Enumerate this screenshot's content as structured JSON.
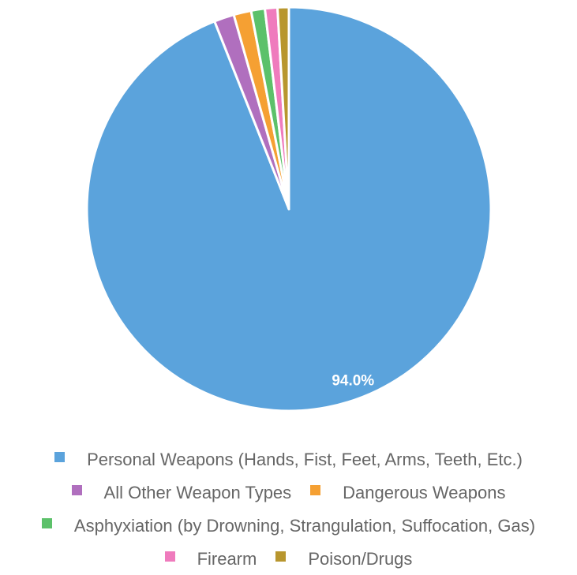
{
  "chart_data": {
    "type": "pie",
    "title": "",
    "categories": [
      "Personal Weapons (Hands, Fist, Feet, Arms, Teeth, Etc.)",
      "All Other Weapon Types",
      "Dangerous Weapons",
      "Asphyxiation (by Drowning, Strangulation, Suffocation, Gas)",
      "Firearm",
      "Poison/Drugs"
    ],
    "values": [
      94.0,
      1.6,
      1.4,
      1.1,
      1.0,
      0.9
    ],
    "colors": [
      "#5ba3dc",
      "#b06fbe",
      "#f5a033",
      "#5cc16a",
      "#ef7bbd",
      "#b8962e"
    ],
    "data_labels": [
      "94.0%",
      "",
      "",
      "",
      "",
      ""
    ],
    "legend_position": "bottom"
  },
  "legend": {
    "rows": [
      [
        0
      ],
      [
        1,
        2
      ],
      [
        3
      ],
      [
        4,
        5
      ]
    ]
  }
}
